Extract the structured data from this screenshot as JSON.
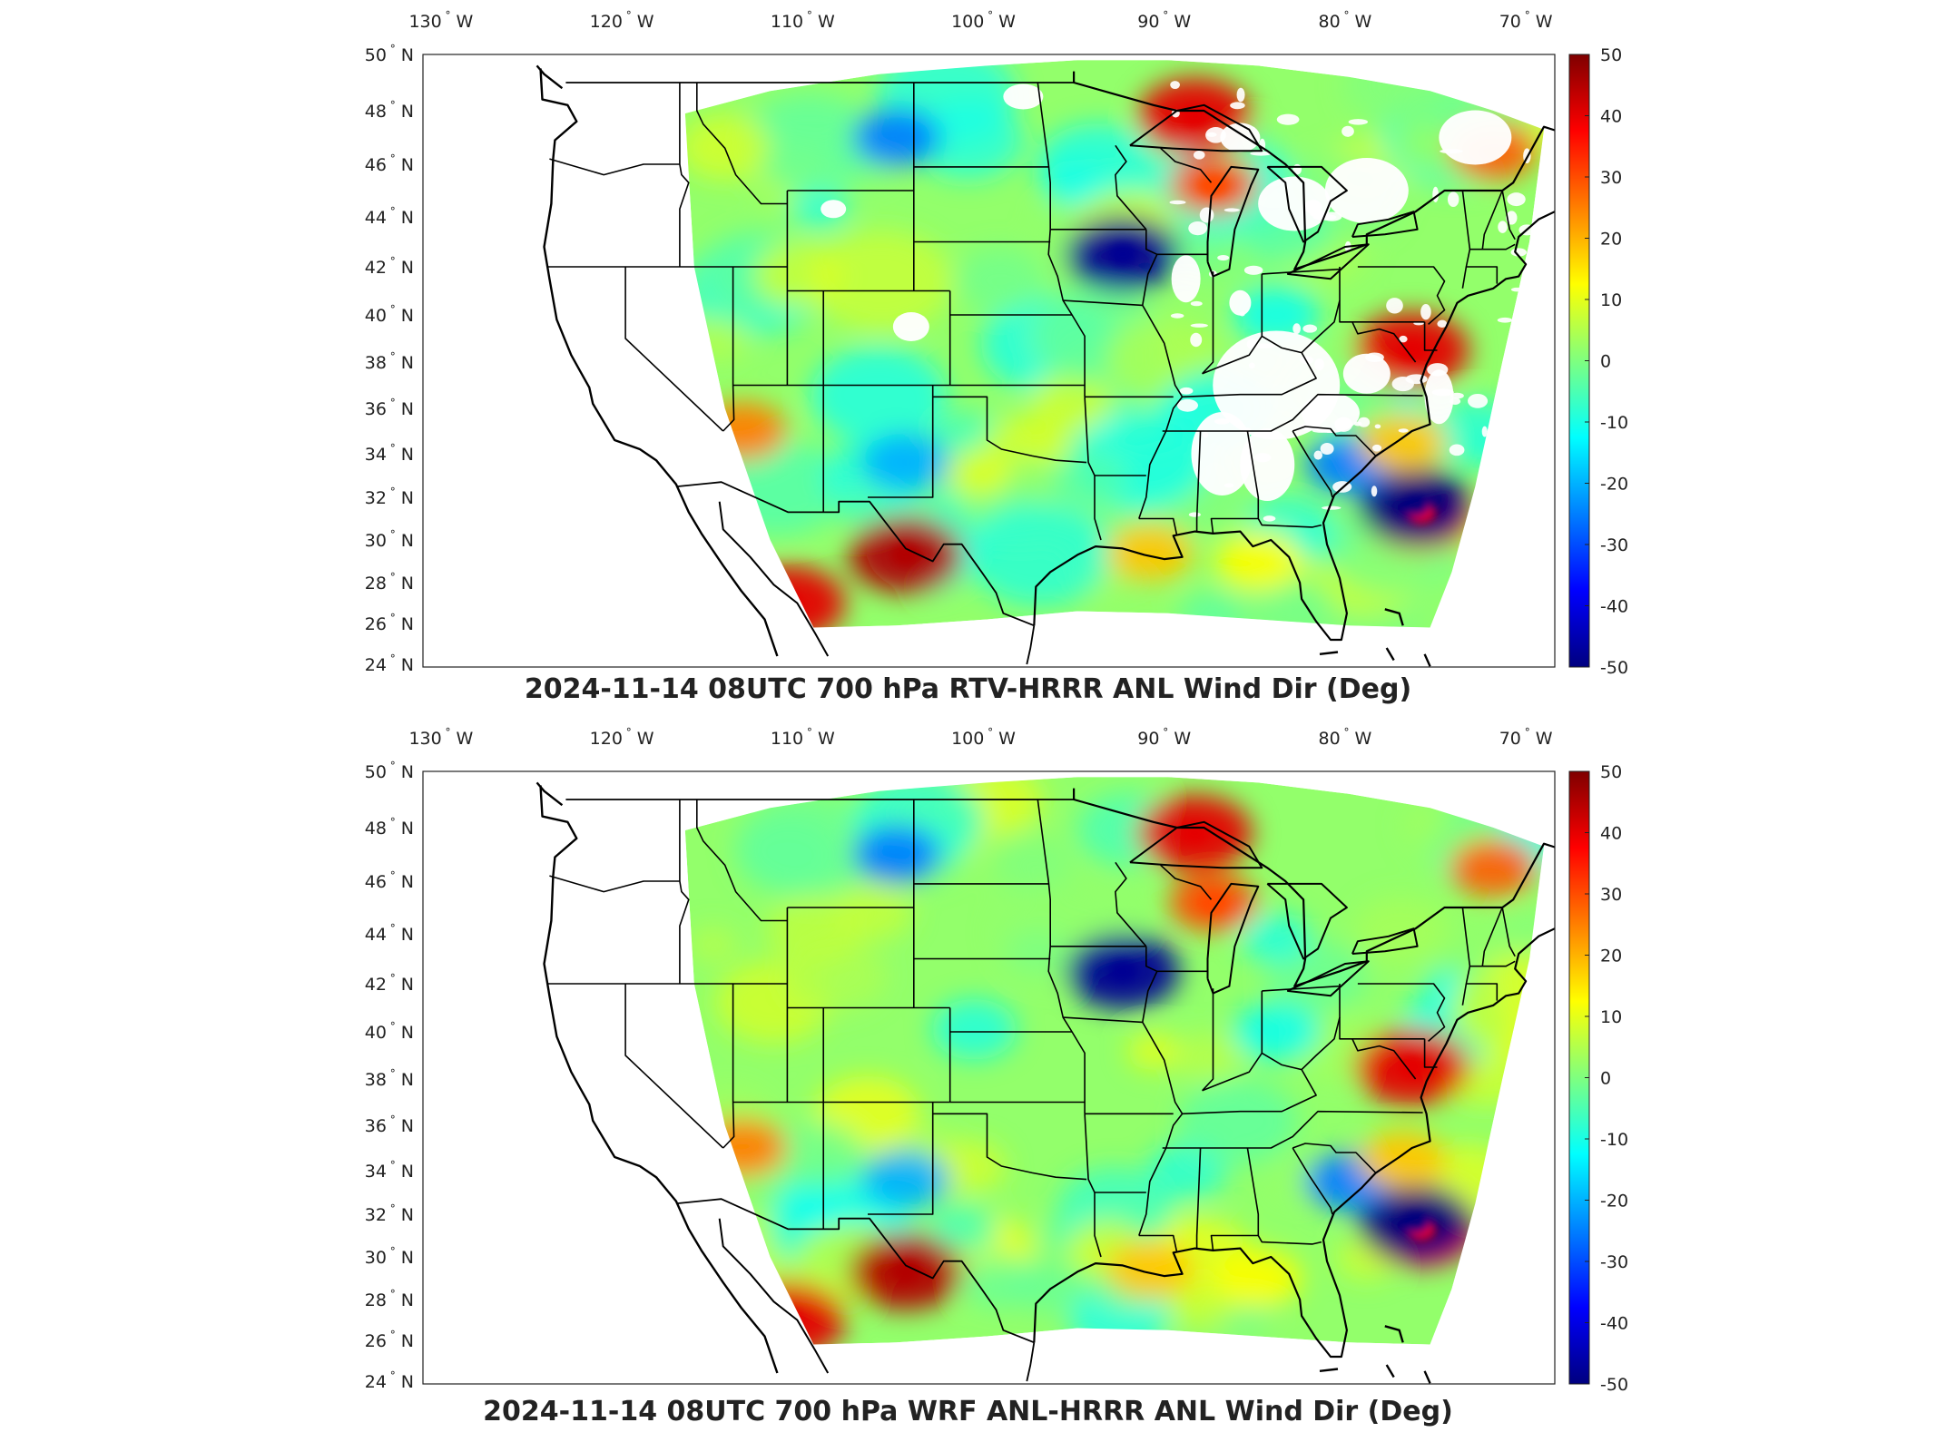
{
  "colors": {
    "colormap": [
      "#00007f",
      "#0000ff",
      "#007fff",
      "#00ffff",
      "#7fff7f",
      "#ffff00",
      "#ff7f00",
      "#ff0000",
      "#7f0000"
    ],
    "border": "#000000",
    "no_data": "#ffffff"
  },
  "lon_ticks": [
    {
      "deg": "130",
      "hem": "W"
    },
    {
      "deg": "120",
      "hem": "W"
    },
    {
      "deg": "110",
      "hem": "W"
    },
    {
      "deg": "100",
      "hem": "W"
    },
    {
      "deg": "90",
      "hem": "W"
    },
    {
      "deg": "80",
      "hem": "W"
    },
    {
      "deg": "70",
      "hem": "W"
    }
  ],
  "lat_ticks": [
    {
      "deg": "50",
      "hem": "N"
    },
    {
      "deg": "48",
      "hem": "N"
    },
    {
      "deg": "46",
      "hem": "N"
    },
    {
      "deg": "44",
      "hem": "N"
    },
    {
      "deg": "42",
      "hem": "N"
    },
    {
      "deg": "40",
      "hem": "N"
    },
    {
      "deg": "38",
      "hem": "N"
    },
    {
      "deg": "36",
      "hem": "N"
    },
    {
      "deg": "34",
      "hem": "N"
    },
    {
      "deg": "32",
      "hem": "N"
    },
    {
      "deg": "30",
      "hem": "N"
    },
    {
      "deg": "28",
      "hem": "N"
    },
    {
      "deg": "26",
      "hem": "N"
    },
    {
      "deg": "24",
      "hem": "N"
    }
  ],
  "colorbar": {
    "ticks": [
      50,
      40,
      30,
      20,
      10,
      0,
      -10,
      -20,
      -30,
      -40,
      -50
    ],
    "range": [
      -50,
      50
    ]
  },
  "maps": [
    {
      "title": "2024-11-14 08UTC 700 hPa RTV-HRRR ANL Wind Dir (Deg)",
      "has_missing_data": true
    },
    {
      "title": "2024-11-14 08UTC 700 hPa WRF ANL-HRRR ANL Wind Dir (Deg)",
      "has_missing_data": false
    }
  ],
  "anomalies": [
    {
      "name": "southwest-texas-positive",
      "lon": -104.5,
      "lat": 29.3,
      "value": 45
    },
    {
      "name": "louisiana-positive",
      "lon": -91,
      "lat": 29.4,
      "value": 18
    },
    {
      "name": "upper-midwest-positive",
      "lon": -88.5,
      "lat": 47.8,
      "value": 40
    },
    {
      "name": "wisconsin-positive",
      "lon": -87.5,
      "lat": 45.2,
      "value": 30
    },
    {
      "name": "iowa-negative",
      "lon": -92.5,
      "lat": 42.5,
      "value": -48
    },
    {
      "name": "offshore-storm-positive",
      "lon": -76,
      "lat": 31.3,
      "value": 38
    },
    {
      "name": "offshore-storm-core",
      "lon": -76.3,
      "lat": 31.6,
      "value": -50
    },
    {
      "name": "arizona-positive",
      "lon": -113.5,
      "lat": 35,
      "value": 25
    },
    {
      "name": "chesapeake-positive",
      "lon": -76.5,
      "lat": 38.5,
      "value": 40
    },
    {
      "name": "maine-positive",
      "lon": -72,
      "lat": 46.5,
      "value": 28
    },
    {
      "name": "southeast-coast-negative",
      "lon": -80,
      "lat": 33.5,
      "value": -25
    },
    {
      "name": "baja-positive",
      "lon": -111,
      "lat": 27,
      "value": 40
    },
    {
      "name": "dakota-negative",
      "lon": -105,
      "lat": 47,
      "value": -25
    },
    {
      "name": "new-mexico-negative",
      "lon": -104.5,
      "lat": 33.6,
      "value": -20
    },
    {
      "name": "gulf-positive",
      "lon": -85,
      "lat": 29,
      "value": 12
    },
    {
      "name": "carolina-offshore-positive",
      "lon": -77,
      "lat": 34.5,
      "value": 18
    },
    {
      "name": "ohio-negative",
      "lon": -84,
      "lat": 40,
      "value": -10
    }
  ]
}
